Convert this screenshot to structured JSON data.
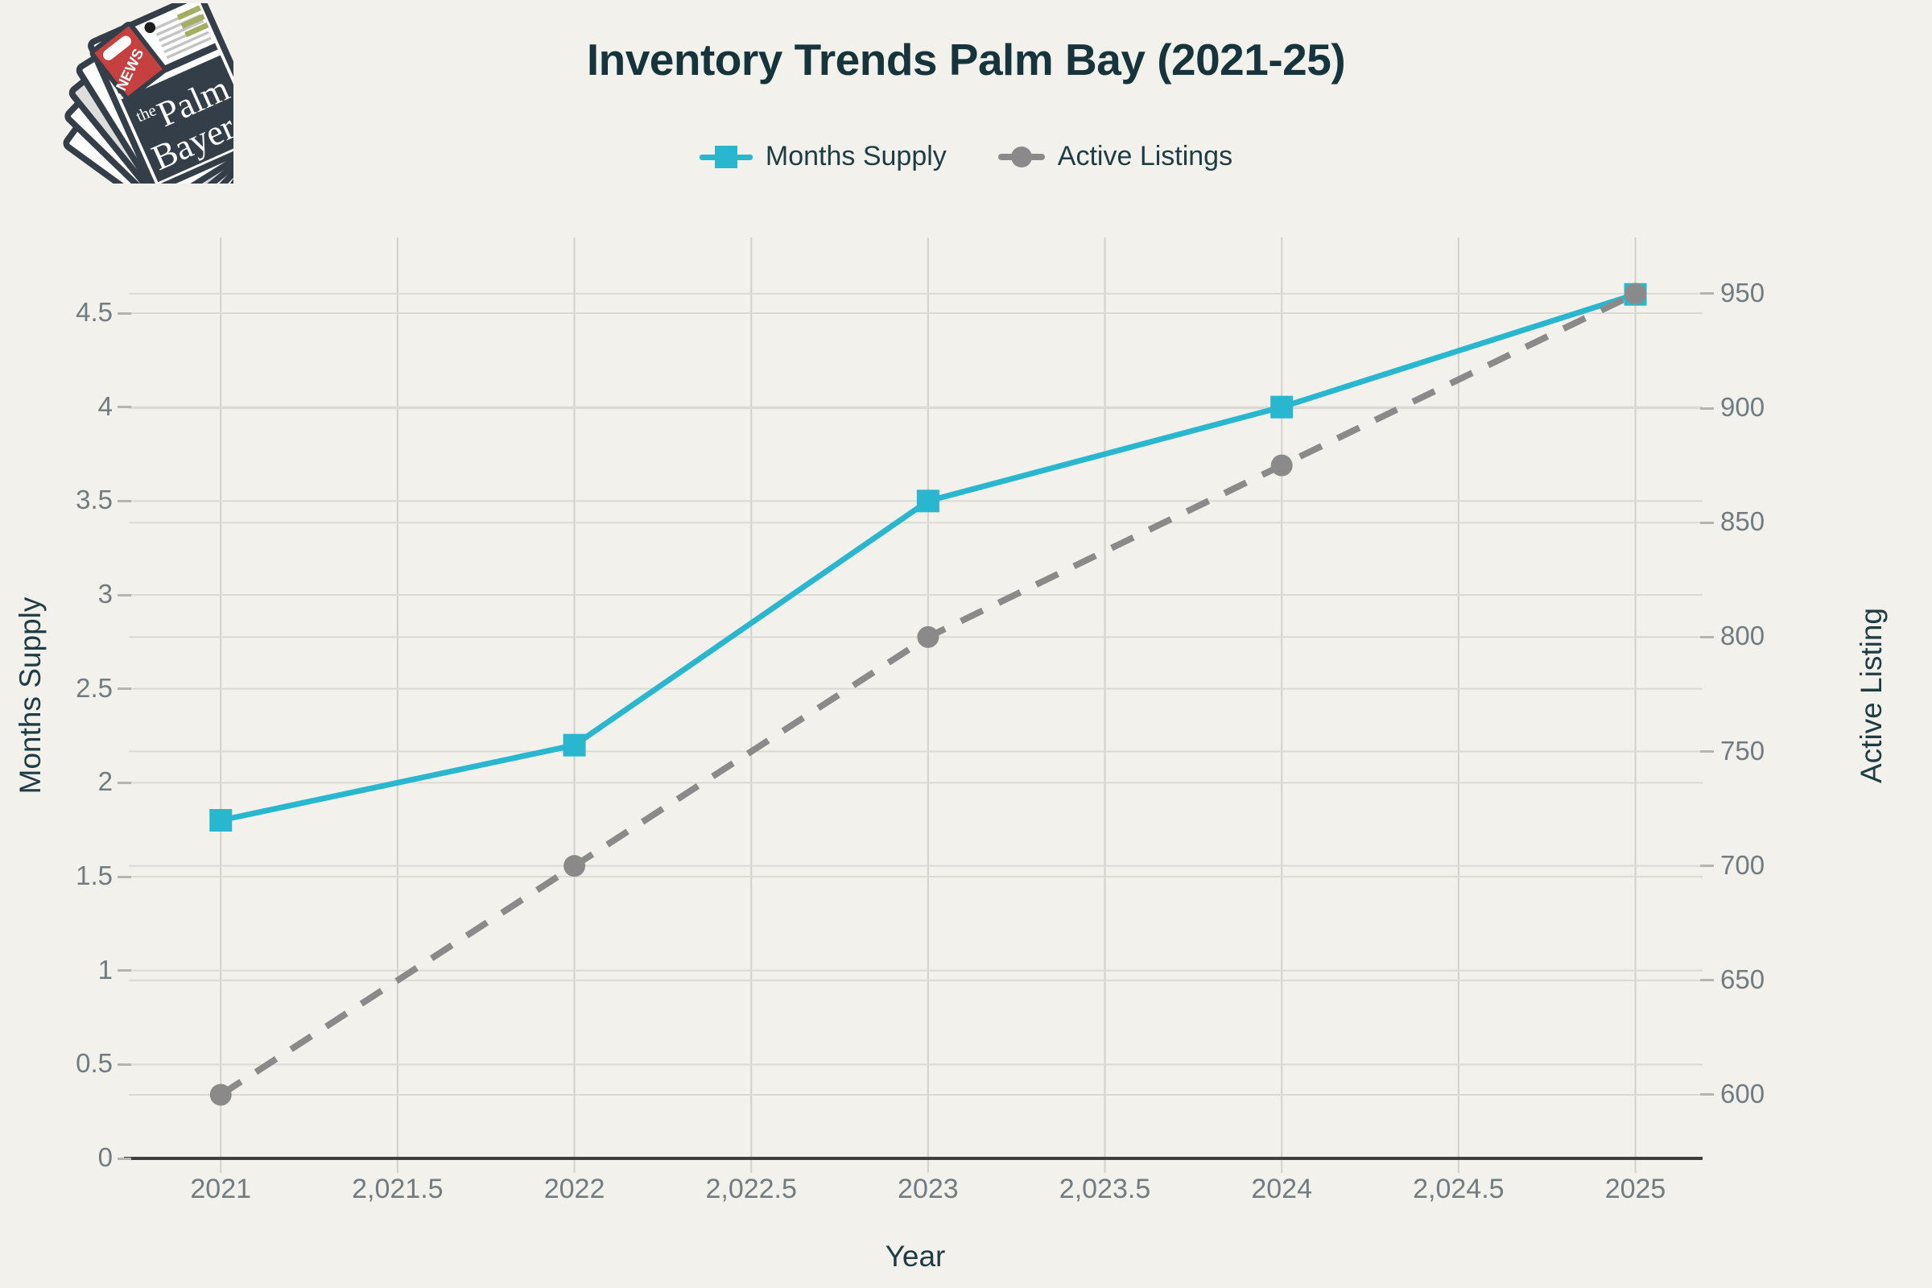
{
  "header": {
    "title": "Inventory Trends Palm Bay (2021-25)"
  },
  "legend": {
    "items": [
      {
        "label": "Months Supply"
      },
      {
        "label": "Active Listings"
      }
    ]
  },
  "logo": {
    "badge_text": "NEWS",
    "masthead_the": "the",
    "masthead_line1": "Palm",
    "masthead_line2": "Bayer"
  },
  "colors": {
    "background": "#f2f1eb",
    "title_text": "#16343c",
    "axis_title_text": "#1e3c44",
    "tick_text": "#717c82",
    "grid_horizontal": "#dbdad3",
    "grid_vertical": "#d2d1ca",
    "axis_line": "#3f3f3f",
    "months_supply": "#29b7cf",
    "active_listings": "#8a8a8a",
    "logo_dark": "#333e49",
    "logo_red": "#c5403f",
    "logo_olive": "#a3ae62"
  },
  "chart_data": {
    "type": "line",
    "title": "Inventory Trends Palm Bay (2021-25)",
    "xlabel": "Year",
    "x": [
      2021,
      2022,
      2023,
      2024,
      2025
    ],
    "x_axis": {
      "tick_values": [
        2021,
        2021.5,
        2022,
        2022.5,
        2023,
        2023.5,
        2024,
        2024.5,
        2025
      ],
      "tick_labels": [
        "2021",
        "2,021.5",
        "2022",
        "2,022.5",
        "2023",
        "2,023.5",
        "2024",
        "2,024.5",
        "2025"
      ],
      "range": [
        2020.74,
        2025.19
      ]
    },
    "left_axis": {
      "label": "Months Supply",
      "ticks": [
        0,
        0.5,
        1,
        1.5,
        2,
        2.5,
        3,
        3.5,
        4,
        4.5
      ],
      "range": [
        0,
        4.903
      ]
    },
    "right_axis": {
      "label": "Active Listing",
      "ticks": [
        600,
        650,
        700,
        750,
        800,
        850,
        900,
        950
      ],
      "range": [
        572.2,
        974.6
      ]
    },
    "series": [
      {
        "name": "Months Supply",
        "axis": "left",
        "values": [
          1.8,
          2.2,
          3.5,
          4.0,
          4.6
        ],
        "color": "#29b7cf",
        "style": "solid",
        "marker": "square"
      },
      {
        "name": "Active Listings",
        "axis": "right",
        "values": [
          600,
          700,
          800,
          875,
          950
        ],
        "color": "#8a8a8a",
        "style": "dashed",
        "marker": "circle"
      }
    ],
    "grid": true,
    "legend_position": "top-center"
  }
}
